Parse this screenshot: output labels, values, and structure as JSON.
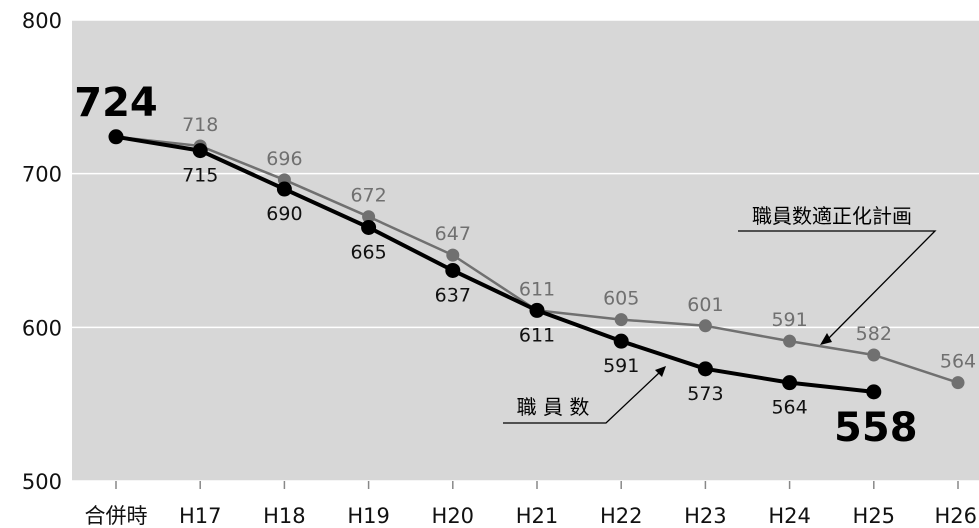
{
  "chart_data": {
    "type": "line",
    "title": "",
    "xlabel": "",
    "ylabel": "",
    "categories": [
      "合併時",
      "H17",
      "H18",
      "H19",
      "H20",
      "H21",
      "H22",
      "H23",
      "H24",
      "H25",
      "H26"
    ],
    "ylim": [
      500,
      800
    ],
    "yticks": [
      "500",
      "600",
      "700",
      "800"
    ],
    "grid": true,
    "series": [
      {
        "name": "職員数適正化計画",
        "color": "#707070",
        "values": [
          724,
          718,
          696,
          672,
          647,
          611,
          605,
          601,
          591,
          582,
          564
        ],
        "labels": [
          "",
          "718",
          "696",
          "672",
          "647",
          "611",
          "605",
          "601",
          "591",
          "582",
          "564"
        ]
      },
      {
        "name": "職 員 数",
        "color": "#000000",
        "values": [
          724,
          715,
          690,
          665,
          637,
          611,
          591,
          573,
          564,
          558,
          null
        ],
        "labels": [
          "724",
          "715",
          "690",
          "665",
          "637",
          "611",
          "591",
          "573",
          "564",
          "558",
          ""
        ]
      }
    ]
  }
}
